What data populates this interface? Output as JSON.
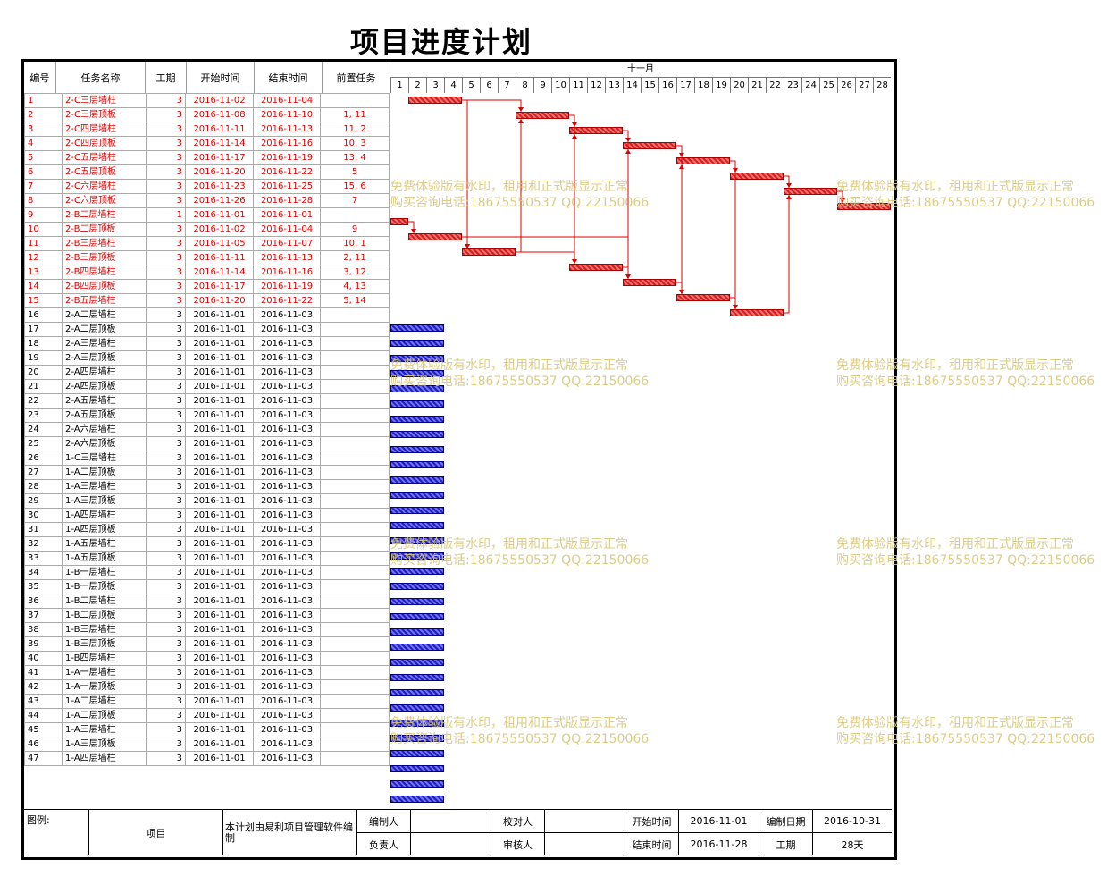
{
  "title": "项目进度计划",
  "headers": {
    "id": "编号",
    "name": "任务名称",
    "duration": "工期",
    "start": "开始时间",
    "end": "结束时间",
    "pre": "前置任务"
  },
  "month": "十一月",
  "days": [
    "1",
    "2",
    "3",
    "4",
    "5",
    "6",
    "7",
    "8",
    "9",
    "10",
    "11",
    "12",
    "13",
    "14",
    "15",
    "16",
    "17",
    "18",
    "19",
    "20",
    "21",
    "22",
    "23",
    "24",
    "25",
    "26",
    "27",
    "28"
  ],
  "tasks": [
    {
      "id": "1",
      "name": "2-C三层墙柱",
      "dur": "3",
      "start": "2016-11-02",
      "end": "2016-11-04",
      "pre": "",
      "critical": true,
      "d0": 2,
      "d1": 4
    },
    {
      "id": "2",
      "name": "2-C三层顶板",
      "dur": "3",
      "start": "2016-11-08",
      "end": "2016-11-10",
      "pre": "1, 11",
      "critical": true,
      "d0": 8,
      "d1": 10
    },
    {
      "id": "3",
      "name": "2-C四层墙柱",
      "dur": "3",
      "start": "2016-11-11",
      "end": "2016-11-13",
      "pre": "11, 2",
      "critical": true,
      "d0": 11,
      "d1": 13
    },
    {
      "id": "4",
      "name": "2-C四层顶板",
      "dur": "3",
      "start": "2016-11-14",
      "end": "2016-11-16",
      "pre": "10, 3",
      "critical": true,
      "d0": 14,
      "d1": 16
    },
    {
      "id": "5",
      "name": "2-C五层墙柱",
      "dur": "3",
      "start": "2016-11-17",
      "end": "2016-11-19",
      "pre": "13, 4",
      "critical": true,
      "d0": 17,
      "d1": 19
    },
    {
      "id": "6",
      "name": "2-C五层顶板",
      "dur": "3",
      "start": "2016-11-20",
      "end": "2016-11-22",
      "pre": "5",
      "critical": true,
      "d0": 20,
      "d1": 22
    },
    {
      "id": "7",
      "name": "2-C六层墙柱",
      "dur": "3",
      "start": "2016-11-23",
      "end": "2016-11-25",
      "pre": "15, 6",
      "critical": true,
      "d0": 23,
      "d1": 25
    },
    {
      "id": "8",
      "name": "2-C六层顶板",
      "dur": "3",
      "start": "2016-11-26",
      "end": "2016-11-28",
      "pre": "7",
      "critical": true,
      "d0": 26,
      "d1": 28
    },
    {
      "id": "9",
      "name": "2-B二层墙柱",
      "dur": "1",
      "start": "2016-11-01",
      "end": "2016-11-01",
      "pre": "",
      "critical": true,
      "d0": 1,
      "d1": 1
    },
    {
      "id": "10",
      "name": "2-B二层顶板",
      "dur": "3",
      "start": "2016-11-02",
      "end": "2016-11-04",
      "pre": "9",
      "critical": true,
      "d0": 2,
      "d1": 4
    },
    {
      "id": "11",
      "name": "2-B三层墙柱",
      "dur": "3",
      "start": "2016-11-05",
      "end": "2016-11-07",
      "pre": "10, 1",
      "critical": true,
      "d0": 5,
      "d1": 7
    },
    {
      "id": "12",
      "name": "2-B三层顶板",
      "dur": "3",
      "start": "2016-11-11",
      "end": "2016-11-13",
      "pre": "2, 11",
      "critical": true,
      "d0": 11,
      "d1": 13
    },
    {
      "id": "13",
      "name": "2-B四层墙柱",
      "dur": "3",
      "start": "2016-11-14",
      "end": "2016-11-16",
      "pre": "3, 12",
      "critical": true,
      "d0": 14,
      "d1": 16
    },
    {
      "id": "14",
      "name": "2-B四层顶板",
      "dur": "3",
      "start": "2016-11-17",
      "end": "2016-11-19",
      "pre": "4, 13",
      "critical": true,
      "d0": 17,
      "d1": 19
    },
    {
      "id": "15",
      "name": "2-B五层墙柱",
      "dur": "3",
      "start": "2016-11-20",
      "end": "2016-11-22",
      "pre": "5, 14",
      "critical": true,
      "d0": 20,
      "d1": 22
    },
    {
      "id": "16",
      "name": "2-A二层墙柱",
      "dur": "3",
      "start": "2016-11-01",
      "end": "2016-11-03",
      "pre": "",
      "critical": false,
      "d0": 1,
      "d1": 3
    },
    {
      "id": "17",
      "name": "2-A二层顶板",
      "dur": "3",
      "start": "2016-11-01",
      "end": "2016-11-03",
      "pre": "",
      "critical": false,
      "d0": 1,
      "d1": 3
    },
    {
      "id": "18",
      "name": "2-A三层墙柱",
      "dur": "3",
      "start": "2016-11-01",
      "end": "2016-11-03",
      "pre": "",
      "critical": false,
      "d0": 1,
      "d1": 3
    },
    {
      "id": "19",
      "name": "2-A三层顶板",
      "dur": "3",
      "start": "2016-11-01",
      "end": "2016-11-03",
      "pre": "",
      "critical": false,
      "d0": 1,
      "d1": 3
    },
    {
      "id": "20",
      "name": "2-A四层墙柱",
      "dur": "3",
      "start": "2016-11-01",
      "end": "2016-11-03",
      "pre": "",
      "critical": false,
      "d0": 1,
      "d1": 3
    },
    {
      "id": "21",
      "name": "2-A四层顶板",
      "dur": "3",
      "start": "2016-11-01",
      "end": "2016-11-03",
      "pre": "",
      "critical": false,
      "d0": 1,
      "d1": 3
    },
    {
      "id": "22",
      "name": "2-A五层墙柱",
      "dur": "3",
      "start": "2016-11-01",
      "end": "2016-11-03",
      "pre": "",
      "critical": false,
      "d0": 1,
      "d1": 3
    },
    {
      "id": "23",
      "name": "2-A五层顶板",
      "dur": "3",
      "start": "2016-11-01",
      "end": "2016-11-03",
      "pre": "",
      "critical": false,
      "d0": 1,
      "d1": 3
    },
    {
      "id": "24",
      "name": "2-A六层墙柱",
      "dur": "3",
      "start": "2016-11-01",
      "end": "2016-11-03",
      "pre": "",
      "critical": false,
      "d0": 1,
      "d1": 3
    },
    {
      "id": "25",
      "name": "2-A六层顶板",
      "dur": "3",
      "start": "2016-11-01",
      "end": "2016-11-03",
      "pre": "",
      "critical": false,
      "d0": 1,
      "d1": 3
    },
    {
      "id": "26",
      "name": "1-C三层墙柱",
      "dur": "3",
      "start": "2016-11-01",
      "end": "2016-11-03",
      "pre": "",
      "critical": false,
      "d0": 1,
      "d1": 3
    },
    {
      "id": "27",
      "name": "1-A二层顶板",
      "dur": "3",
      "start": "2016-11-01",
      "end": "2016-11-03",
      "pre": "",
      "critical": false,
      "d0": 1,
      "d1": 3
    },
    {
      "id": "28",
      "name": "1-A三层墙柱",
      "dur": "3",
      "start": "2016-11-01",
      "end": "2016-11-03",
      "pre": "",
      "critical": false,
      "d0": 1,
      "d1": 3
    },
    {
      "id": "29",
      "name": "1-A三层顶板",
      "dur": "3",
      "start": "2016-11-01",
      "end": "2016-11-03",
      "pre": "",
      "critical": false,
      "d0": 1,
      "d1": 3
    },
    {
      "id": "30",
      "name": "1-A四层墙柱",
      "dur": "3",
      "start": "2016-11-01",
      "end": "2016-11-03",
      "pre": "",
      "critical": false,
      "d0": 1,
      "d1": 3
    },
    {
      "id": "31",
      "name": "1-A四层顶板",
      "dur": "3",
      "start": "2016-11-01",
      "end": "2016-11-03",
      "pre": "",
      "critical": false,
      "d0": 1,
      "d1": 3
    },
    {
      "id": "32",
      "name": "1-A五层墙柱",
      "dur": "3",
      "start": "2016-11-01",
      "end": "2016-11-03",
      "pre": "",
      "critical": false,
      "d0": 1,
      "d1": 3
    },
    {
      "id": "33",
      "name": "1-A五层顶板",
      "dur": "3",
      "start": "2016-11-01",
      "end": "2016-11-03",
      "pre": "",
      "critical": false,
      "d0": 1,
      "d1": 3
    },
    {
      "id": "34",
      "name": "1-B一层墙柱",
      "dur": "3",
      "start": "2016-11-01",
      "end": "2016-11-03",
      "pre": "",
      "critical": false,
      "d0": 1,
      "d1": 3
    },
    {
      "id": "35",
      "name": "1-B一层顶板",
      "dur": "3",
      "start": "2016-11-01",
      "end": "2016-11-03",
      "pre": "",
      "critical": false,
      "d0": 1,
      "d1": 3
    },
    {
      "id": "36",
      "name": "1-B二层墙柱",
      "dur": "3",
      "start": "2016-11-01",
      "end": "2016-11-03",
      "pre": "",
      "critical": false,
      "d0": 1,
      "d1": 3
    },
    {
      "id": "37",
      "name": "1-B二层顶板",
      "dur": "3",
      "start": "2016-11-01",
      "end": "2016-11-03",
      "pre": "",
      "critical": false,
      "d0": 1,
      "d1": 3
    },
    {
      "id": "38",
      "name": "1-B三层墙柱",
      "dur": "3",
      "start": "2016-11-01",
      "end": "2016-11-03",
      "pre": "",
      "critical": false,
      "d0": 1,
      "d1": 3
    },
    {
      "id": "39",
      "name": "1-B三层顶板",
      "dur": "3",
      "start": "2016-11-01",
      "end": "2016-11-03",
      "pre": "",
      "critical": false,
      "d0": 1,
      "d1": 3
    },
    {
      "id": "40",
      "name": "1-B四层墙柱",
      "dur": "3",
      "start": "2016-11-01",
      "end": "2016-11-03",
      "pre": "",
      "critical": false,
      "d0": 1,
      "d1": 3
    },
    {
      "id": "41",
      "name": "1-A一层墙柱",
      "dur": "3",
      "start": "2016-11-01",
      "end": "2016-11-03",
      "pre": "",
      "critical": false,
      "d0": 1,
      "d1": 3
    },
    {
      "id": "42",
      "name": "1-A一层顶板",
      "dur": "3",
      "start": "2016-11-01",
      "end": "2016-11-03",
      "pre": "",
      "critical": false,
      "d0": 1,
      "d1": 3
    },
    {
      "id": "43",
      "name": "1-A二层墙柱",
      "dur": "3",
      "start": "2016-11-01",
      "end": "2016-11-03",
      "pre": "",
      "critical": false,
      "d0": 1,
      "d1": 3
    },
    {
      "id": "44",
      "name": "1-A二层顶板",
      "dur": "3",
      "start": "2016-11-01",
      "end": "2016-11-03",
      "pre": "",
      "critical": false,
      "d0": 1,
      "d1": 3
    },
    {
      "id": "45",
      "name": "1-A三层墙柱",
      "dur": "3",
      "start": "2016-11-01",
      "end": "2016-11-03",
      "pre": "",
      "critical": false,
      "d0": 1,
      "d1": 3
    },
    {
      "id": "46",
      "name": "1-A三层顶板",
      "dur": "3",
      "start": "2016-11-01",
      "end": "2016-11-03",
      "pre": "",
      "critical": false,
      "d0": 1,
      "d1": 3
    },
    {
      "id": "47",
      "name": "1-A四层墙柱",
      "dur": "3",
      "start": "2016-11-01",
      "end": "2016-11-03",
      "pre": "",
      "critical": false,
      "d0": 1,
      "d1": 3
    }
  ],
  "watermark": {
    "line1": "免费体验版有水印，租用和正式版显示正常",
    "line2": "购买咨询电话:18675550537 QQ:22150066"
  },
  "footer": {
    "legend": "图例:",
    "project_label": "项目",
    "software_note": "本计划由易利项目管理软件编制",
    "compiler_label": "编制人",
    "proofreader_label": "校对人",
    "start_label": "开始时间",
    "start_value": "2016-11-01",
    "date_label": "编制日期",
    "date_value": "2016-10-31",
    "owner_label": "负责人",
    "reviewer_label": "审核人",
    "end_label": "结束时间",
    "end_value": "2016-11-28",
    "duration_label": "工期",
    "duration_value": "28天"
  },
  "colors": {
    "critical": "#e00000",
    "normal_bar": "#2020c0",
    "watermark": "#d9c77a"
  }
}
